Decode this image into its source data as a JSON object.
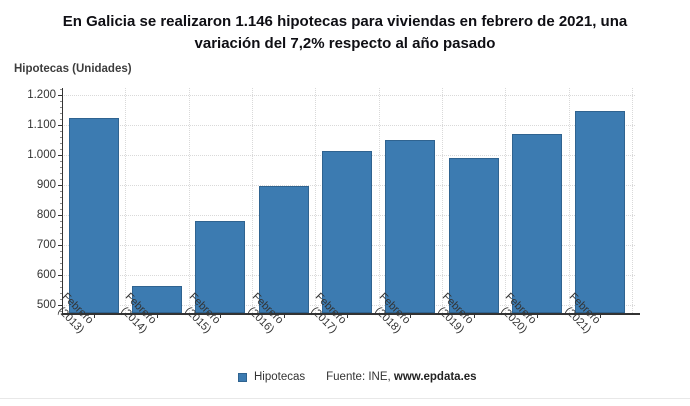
{
  "title": {
    "lines": [
      "En Galicia se realizaron 1.146 hipotecas para viviendas en febrero de 2021, una",
      "variación del 7,2% respecto al año pasado"
    ]
  },
  "ylabel": "Hipotecas (Unidades)",
  "legend": {
    "label": "Hipotecas"
  },
  "source": {
    "prefix": "Fuente: INE, ",
    "link": "www.epdata.es"
  },
  "colors": {
    "bar": "#3C7BB1",
    "bar_border": "#2F6390",
    "axis": "#333333",
    "grid": "#D9D9D9",
    "text": "#333333",
    "title": "#0F0F14"
  },
  "chart_data": {
    "type": "bar",
    "title": "En Galicia se realizaron 1.146 hipotecas para viviendas en febrero de 2021, una variación del 7,2% respecto al año pasado",
    "xlabel": "",
    "ylabel": "Hipotecas (Unidades)",
    "categories": [
      "Febrero (2013)",
      "Febrero (2014)",
      "Febrero (2015)",
      "Febrero (2016)",
      "Febrero (2017)",
      "Febrero (2018)",
      "Febrero (2019)",
      "Febrero (2020)",
      "Febrero (2021)"
    ],
    "series": [
      {
        "name": "Hipotecas",
        "values": [
          1124,
          562,
          781,
          898,
          1013,
          1050,
          989,
          1069,
          1146
        ]
      }
    ],
    "yticks": [
      500,
      600,
      700,
      800,
      900,
      1000,
      1100,
      1200
    ],
    "ytick_labels": [
      "500",
      "600",
      "700",
      "800",
      "900",
      "1.000",
      "1.100",
      "1.200"
    ],
    "ylim": [
      473,
      1223
    ],
    "grid": true,
    "legend_position": "bottom",
    "source": "Fuente: INE, www.epdata.es"
  }
}
